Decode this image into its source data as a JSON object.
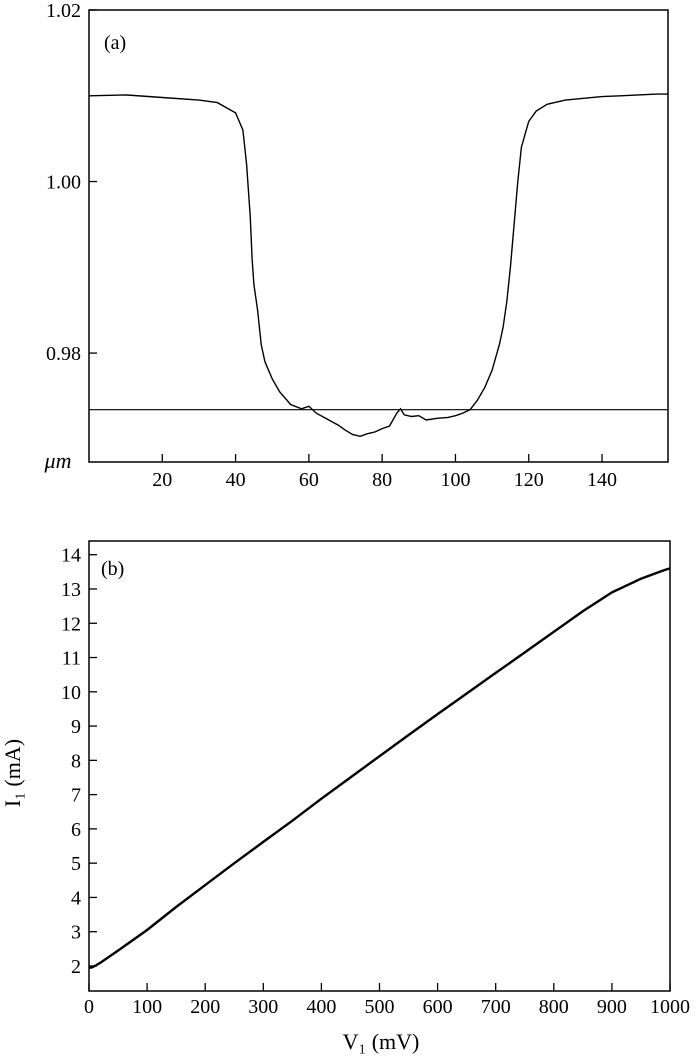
{
  "chart_data": [
    {
      "type": "line",
      "panel_label": "(a)",
      "ylabel": "μm",
      "xlabel": "",
      "xlim": [
        0,
        158
      ],
      "ylim": [
        0.9673,
        1.02
      ],
      "x_ticks": [
        20,
        40,
        60,
        80,
        100,
        120,
        140
      ],
      "y_ticks": [
        0.98,
        1.0,
        1.02
      ],
      "y_tick_labels": [
        "0.98",
        "1.00",
        "1.02"
      ],
      "grid": false,
      "series": [
        {
          "x": [
            0,
            10,
            20,
            30,
            35,
            40,
            42,
            43,
            44,
            44.5,
            45,
            46,
            47,
            48,
            50,
            52,
            55,
            58,
            60,
            62,
            65,
            68,
            70,
            72,
            74,
            76,
            78,
            80,
            82,
            84,
            85,
            86,
            88,
            90,
            92,
            95,
            98,
            100,
            102,
            104,
            106,
            108,
            110,
            112,
            113,
            114,
            115,
            116,
            117,
            118,
            120,
            122,
            125,
            130,
            135,
            140,
            145,
            150,
            155,
            158
          ],
          "y": [
            1.01,
            1.0101,
            1.0098,
            1.0095,
            1.0092,
            1.008,
            1.006,
            1.002,
            0.996,
            0.991,
            0.988,
            0.985,
            0.981,
            0.979,
            0.977,
            0.9755,
            0.974,
            0.9735,
            0.9738,
            0.973,
            0.9723,
            0.9716,
            0.971,
            0.9705,
            0.9703,
            0.9706,
            0.9708,
            0.9712,
            0.9715,
            0.973,
            0.9735,
            0.9728,
            0.9726,
            0.9727,
            0.9722,
            0.9724,
            0.9725,
            0.9727,
            0.973,
            0.9734,
            0.9745,
            0.976,
            0.978,
            0.981,
            0.983,
            0.986,
            0.99,
            0.995,
            1.0,
            1.004,
            1.007,
            1.0082,
            1.009,
            1.0095,
            1.0097,
            1.0099,
            1.01,
            1.0101,
            1.0102,
            1.0102
          ]
        }
      ],
      "reference_line_y": 0.9734
    },
    {
      "type": "line",
      "panel_label": "(b)",
      "xlabel": "V₁ (mV)",
      "ylabel": "I₁ (mA)",
      "xlim": [
        0,
        1000
      ],
      "ylim": [
        1.27,
        14.4
      ],
      "x_ticks": [
        0,
        100,
        200,
        300,
        400,
        500,
        600,
        700,
        800,
        900,
        1000
      ],
      "y_ticks": [
        2,
        3,
        4,
        5,
        6,
        7,
        8,
        9,
        10,
        11,
        12,
        13,
        14
      ],
      "grid": false,
      "series": [
        {
          "x": [
            0,
            5,
            10,
            20,
            50,
            100,
            150,
            200,
            250,
            300,
            350,
            400,
            450,
            500,
            550,
            600,
            650,
            700,
            750,
            800,
            850,
            900,
            950,
            990,
            1000
          ],
          "y": [
            1.95,
            1.96,
            2.0,
            2.1,
            2.45,
            3.05,
            3.72,
            4.36,
            5.0,
            5.62,
            6.24,
            6.88,
            7.5,
            8.12,
            8.74,
            9.35,
            9.95,
            10.55,
            11.15,
            11.75,
            12.35,
            12.9,
            13.3,
            13.55,
            13.6
          ]
        }
      ]
    }
  ]
}
